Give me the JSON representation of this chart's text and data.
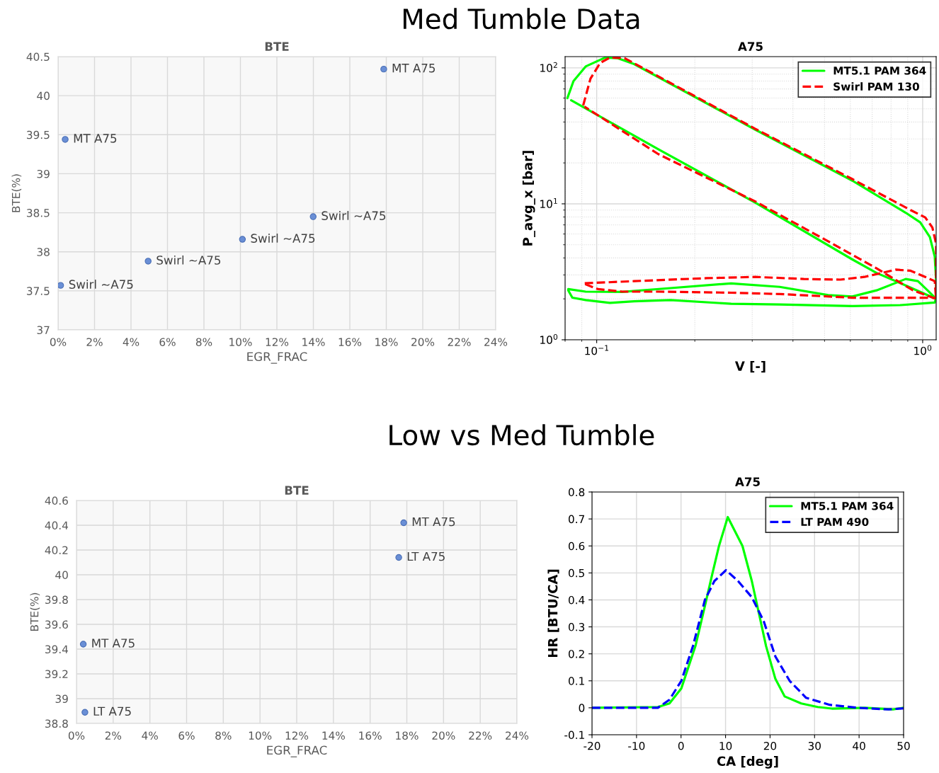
{
  "chart_data": [
    {
      "type": "scatter",
      "title": "BTE",
      "xlabel": "EGR_FRAC",
      "ylabel": "BTE(%)",
      "marker": "circle",
      "grid": true,
      "xlim": [
        0,
        24
      ],
      "ylim": [
        37,
        40.5
      ],
      "xticks": [
        {
          "value": 0,
          "label": "0%"
        },
        {
          "value": 2,
          "label": "2%"
        },
        {
          "value": 4,
          "label": "4%"
        },
        {
          "value": 6,
          "label": "6%"
        },
        {
          "value": 8,
          "label": "8%"
        },
        {
          "value": 10,
          "label": "10%"
        },
        {
          "value": 12,
          "label": "12%"
        },
        {
          "value": 14,
          "label": "14%"
        },
        {
          "value": 16,
          "label": "16%"
        },
        {
          "value": 18,
          "label": "18%"
        },
        {
          "value": 20,
          "label": "20%"
        },
        {
          "value": 22,
          "label": "22%"
        },
        {
          "value": 24,
          "label": "24%"
        }
      ],
      "yticks": [
        37,
        37.5,
        38,
        38.5,
        39,
        39.5,
        40,
        40.5
      ],
      "series": [
        {
          "color": "#6a8fd6",
          "x": [
            17.86,
            0.39,
            13.99,
            10.11,
            4.94,
            0.14
          ],
          "values": [
            40.34,
            39.44,
            38.45,
            38.16,
            37.88,
            37.57
          ]
        }
      ],
      "annotations": [
        "Med Tumble Data",
        {
          "text": "MT A75",
          "x": 17.86,
          "y": 40.34
        },
        {
          "text": "MT A75",
          "x": 0.39,
          "y": 39.44
        },
        {
          "text": "Swirl ~A75",
          "x": 13.99,
          "y": 38.45
        },
        {
          "text": "Swirl ~A75",
          "x": 10.11,
          "y": 38.16
        },
        {
          "text": "Swirl ~A75",
          "x": 4.94,
          "y": 37.88
        },
        {
          "text": "Swirl ~A75",
          "x": 0.14,
          "y": 37.57
        }
      ]
    },
    {
      "type": "line",
      "title": "A75",
      "xlabel": "V [-]",
      "ylabel": "P_avg_x [bar]",
      "log": "xy",
      "grid": true,
      "legend": "top right",
      "xlim": [
        0.08,
        1.1
      ],
      "ylim": [
        1,
        121
      ],
      "xticks": [
        {
          "value": 0.1,
          "label": "10$^{−1}$"
        },
        {
          "value": 1,
          "label": "10$^{0}$"
        }
      ],
      "yticks": [
        {
          "value": 1,
          "label": "10$^{0}$"
        },
        {
          "value": 10,
          "label": "10$^{1}$"
        },
        {
          "value": 100,
          "label": "10$^{2}$"
        }
      ],
      "series": [
        {
          "name": "MT5.1 PAM 364",
          "color": "#00ff00",
          "line_style": "solid",
          "x": [
            0.0813,
            0.0849,
            0.0925,
            0.1061,
            0.1156,
            0.1303,
            0.3068,
            0.6085,
            0.887,
            0.983,
            1.052,
            1.089,
            1.1,
            1.1,
            1.089,
            0.857,
            0.6085,
            0.364,
            0.2585,
            0.1684,
            0.1303,
            0.1098,
            0.0925,
            0.0842,
            0.0818,
            0.0818,
            0.0925,
            0.1196,
            0.1684,
            0.2585,
            0.364,
            0.5129,
            0.6085,
            0.7223,
            0.887,
            0.967,
            1.035,
            1.099,
            0.857,
            0.7223,
            0.6085,
            0.3068,
            0.1546,
            0.0835
          ],
          "values": [
            59.9,
            80,
            102.4,
            119,
            118,
            106.7,
            35.1,
            14.8,
            8.6,
            7.3,
            5.7,
            4.1,
            2.7,
            2.04,
            1.88,
            1.8,
            1.77,
            1.82,
            1.84,
            1.96,
            1.92,
            1.87,
            1.96,
            2.04,
            2.31,
            2.36,
            2.26,
            2.25,
            2.4,
            2.6,
            2.45,
            2.13,
            2.08,
            2.31,
            2.8,
            2.7,
            2.31,
            2.0,
            2.6,
            3.1,
            3.9,
            10.2,
            25.2,
            57.8
          ]
        },
        {
          "name": "Swirl PAM 130",
          "color": "#ff0000",
          "line_style": "dashed",
          "x": [
            0.0909,
            0.0957,
            0.1025,
            0.1098,
            0.1217,
            0.3068,
            0.6085,
            0.918,
            1.018,
            1.071,
            1.1,
            1.1,
            1.1,
            0.6085,
            0.364,
            0.2585,
            0.1546,
            0.1196,
            0.1008,
            0.0909,
            0.1303,
            0.2178,
            0.3068,
            0.432,
            0.5586,
            0.663,
            0.828,
            0.918,
            1.018,
            1.089,
            1.099,
            0.934,
            0.7223,
            0.5129,
            0.3068,
            0.1546,
            0.0917
          ],
          "values": [
            52.9,
            83.3,
            108.9,
            119,
            118,
            35.6,
            15.2,
            9.0,
            7.95,
            6.7,
            5.05,
            3.35,
            2.04,
            2.04,
            2.17,
            2.22,
            2.26,
            2.26,
            2.36,
            2.6,
            2.7,
            2.84,
            2.9,
            2.8,
            2.77,
            2.9,
            3.28,
            3.22,
            2.9,
            2.7,
            2.0,
            2.31,
            3.35,
            5.3,
            10.4,
            23.2,
            51.9
          ]
        }
      ]
    },
    {
      "type": "scatter",
      "title": "BTE",
      "xlabel": "EGR_FRAC",
      "ylabel": "BTE(%)",
      "marker": "circle",
      "grid": true,
      "xlim": [
        0,
        24
      ],
      "ylim": [
        38.8,
        40.6
      ],
      "xticks": [
        {
          "value": 0,
          "label": "0%"
        },
        {
          "value": 2,
          "label": "2%"
        },
        {
          "value": 4,
          "label": "4%"
        },
        {
          "value": 6,
          "label": "6%"
        },
        {
          "value": 8,
          "label": "8%"
        },
        {
          "value": 10,
          "label": "10%"
        },
        {
          "value": 12,
          "label": "12%"
        },
        {
          "value": 14,
          "label": "14%"
        },
        {
          "value": 16,
          "label": "16%"
        },
        {
          "value": 18,
          "label": "18%"
        },
        {
          "value": 20,
          "label": "20%"
        },
        {
          "value": 22,
          "label": "22%"
        },
        {
          "value": 24,
          "label": "24%"
        }
      ],
      "yticks": [
        38.8,
        39,
        39.2,
        39.4,
        39.6,
        39.8,
        40,
        40.2,
        40.4,
        40.6
      ],
      "series": [
        {
          "color": "#6a8fd6",
          "x": [
            17.83,
            17.56,
            0.37,
            0.46
          ],
          "values": [
            40.42,
            40.14,
            39.44,
            38.89
          ]
        }
      ],
      "annotations": [
        "Low vs Med Tumble",
        {
          "text": "MT A75",
          "x": 17.83,
          "y": 40.42
        },
        {
          "text": "LT A75",
          "x": 17.56,
          "y": 40.14
        },
        {
          "text": "MT A75",
          "x": 0.37,
          "y": 39.44
        },
        {
          "text": "LT A75",
          "x": 0.46,
          "y": 38.89
        }
      ]
    },
    {
      "type": "line",
      "title": "A75",
      "xlabel": "CA [deg]",
      "ylabel": "HR [BTU/CA]",
      "grid": true,
      "legend": "top right",
      "xlim": [
        -20,
        50
      ],
      "ylim": [
        -0.1,
        0.8
      ],
      "xticks": [
        -20,
        -10,
        0,
        10,
        20,
        30,
        40,
        50
      ],
      "yticks": [
        -0.1,
        0,
        0.1,
        0.2,
        0.3,
        0.4,
        0.5,
        0.6,
        0.7,
        0.8
      ],
      "series": [
        {
          "name": "MT5.1 PAM 364",
          "color": "#00ff00",
          "line_style": "solid",
          "x": [
            -20,
            -5.2,
            -2.6,
            0.07,
            3.24,
            5.36,
            6.94,
            8.53,
            10.5,
            13.8,
            15.9,
            17.5,
            19.1,
            21.2,
            23.3,
            27,
            30.7,
            33.9,
            41.3,
            47.6,
            50
          ],
          "values": [
            0,
            0.003,
            0.016,
            0.072,
            0.229,
            0.377,
            0.49,
            0.6,
            0.707,
            0.6,
            0.47,
            0.35,
            0.229,
            0.107,
            0.042,
            0.016,
            0.003,
            -0.003,
            0,
            -0.006,
            0
          ]
        },
        {
          "name": "LT PAM 490",
          "color": "#0000ff",
          "line_style": "dashed",
          "x": [
            -20,
            -5.2,
            -2.6,
            0.07,
            2.7,
            5.36,
            7.5,
            10.1,
            12.8,
            15.9,
            18.6,
            21.2,
            24.4,
            28.1,
            33.4,
            39.7,
            46.6,
            50
          ],
          "values": [
            0,
            0,
            0.03,
            0.1,
            0.23,
            0.4,
            0.47,
            0.51,
            0.47,
            0.41,
            0.32,
            0.19,
            0.1,
            0.037,
            0.011,
            0,
            -0.006,
            -0.002
          ]
        }
      ]
    }
  ]
}
